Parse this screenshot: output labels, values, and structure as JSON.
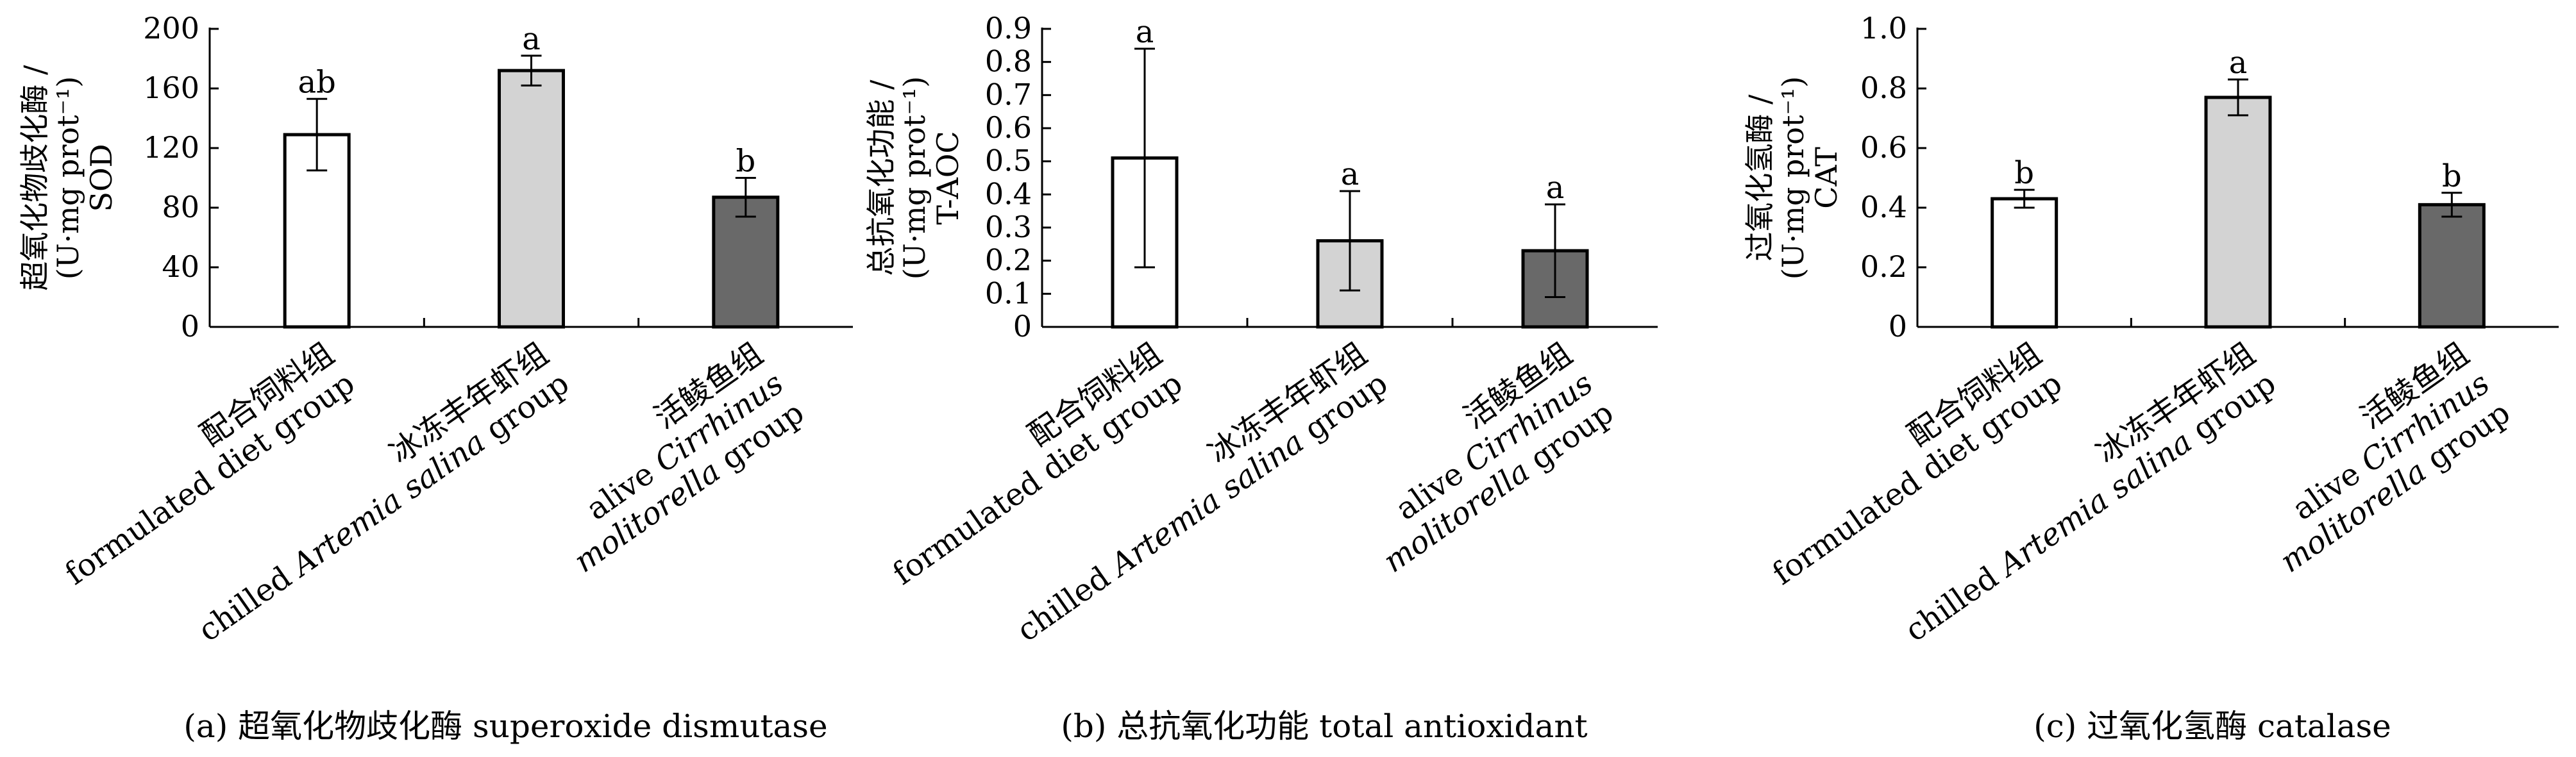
{
  "chart_data": [
    {
      "type": "bar",
      "ylabel": [
        "超氧化物歧化酶 /",
        "(U·mg prot⁻¹)",
        "SOD"
      ],
      "ylim": [
        0,
        200
      ],
      "yticks": [
        0,
        40,
        80,
        120,
        160,
        200
      ],
      "ytick_labels": [
        "0",
        "40",
        "80",
        "120",
        "160",
        "200"
      ],
      "categories": [
        [
          "配合饲料组",
          "formulated diet group"
        ],
        [
          "冰冻丰年虾组",
          "chilled Artemia salina group"
        ],
        [
          "活鲮鱼组",
          "alive Cirrhinus",
          "molitorella group"
        ]
      ],
      "values": [
        129,
        172,
        87
      ],
      "errors": [
        24,
        10,
        13
      ],
      "significance": [
        "ab",
        "a",
        "b"
      ],
      "caption": "(a) 超氧化物歧化酶 superoxide dismutase"
    },
    {
      "type": "bar",
      "ylabel": [
        "总抗氧化功能 /",
        "(U·mg prot⁻¹)",
        "T-AOC"
      ],
      "ylim": [
        0,
        0.9
      ],
      "yticks": [
        0,
        0.1,
        0.2,
        0.3,
        0.4,
        0.5,
        0.6,
        0.7,
        0.8,
        0.9
      ],
      "ytick_labels": [
        "0",
        "0.1",
        "0.2",
        "0.3",
        "0.4",
        "0.5",
        "0.6",
        "0.7",
        "0.8",
        "0.9"
      ],
      "categories": [
        [
          "配合饲料组",
          "formulated diet group"
        ],
        [
          "冰冻丰年虾组",
          "chilled Artemia salina group"
        ],
        [
          "活鲮鱼组",
          "alive Cirrhinus",
          "molitorella group"
        ]
      ],
      "values": [
        0.51,
        0.26,
        0.23
      ],
      "errors": [
        0.33,
        0.15,
        0.14
      ],
      "significance": [
        "a",
        "a",
        "a"
      ],
      "caption": "(b) 总抗氧化功能 total antioxidant"
    },
    {
      "type": "bar",
      "ylabel": [
        "过氧化氢酶 /",
        "(U·mg prot⁻¹)",
        "CAT"
      ],
      "ylim": [
        0,
        1.0
      ],
      "yticks": [
        0,
        0.2,
        0.4,
        0.6,
        0.8,
        1.0
      ],
      "ytick_labels": [
        "0",
        "0.2",
        "0.4",
        "0.6",
        "0.8",
        "1.0"
      ],
      "categories": [
        [
          "配合饲料组",
          "formulated diet group"
        ],
        [
          "冰冻丰年虾组",
          "chilled Artemia salina group"
        ],
        [
          "活鲮鱼组",
          "alive Cirrhinus",
          "molitorella group"
        ]
      ],
      "values": [
        0.43,
        0.77,
        0.41
      ],
      "errors": [
        0.03,
        0.06,
        0.04
      ],
      "significance": [
        "b",
        "a",
        "b"
      ],
      "caption": "(c) 过氧化氢酶 catalase"
    }
  ],
  "colors": [
    "#ffffff",
    "#d3d3d3",
    "#696969"
  ]
}
